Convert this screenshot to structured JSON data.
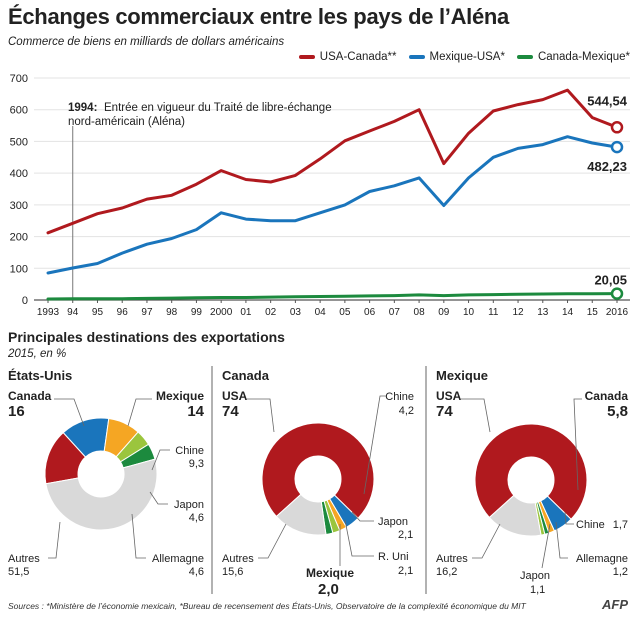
{
  "header": {
    "title": "Échanges commerciaux entre les pays de l’Aléna",
    "subtitle": "Commerce de biens en milliards de dollars américains"
  },
  "colors": {
    "usa_canada": "#b0191e",
    "mexique_usa": "#1a75bc",
    "canada_mexique": "#1c8a3e"
  },
  "chart_data": [
    {
      "type": "line",
      "x": [
        "1993",
        "94",
        "95",
        "96",
        "97",
        "98",
        "99",
        "2000",
        "01",
        "02",
        "03",
        "04",
        "05",
        "06",
        "07",
        "08",
        "09",
        "10",
        "11",
        "12",
        "13",
        "14",
        "15",
        "2016"
      ],
      "ylim": [
        0,
        700
      ],
      "yticks": [
        0,
        100,
        200,
        300,
        400,
        500,
        600,
        700
      ],
      "grid": true,
      "series": [
        {
          "name": "USA-Canada**",
          "color": "#b0191e",
          "values": [
            212,
            242,
            272,
            290,
            318,
            330,
            365,
            408,
            380,
            372,
            393,
            445,
            502,
            533,
            563,
            600,
            430,
            526,
            596,
            616,
            632,
            662,
            575,
            544.54
          ],
          "end_label": "544,54"
        },
        {
          "name": "Mexique-USA*",
          "color": "#1a75bc",
          "values": [
            85,
            101,
            115,
            148,
            176,
            194,
            222,
            275,
            255,
            250,
            250,
            275,
            300,
            342,
            360,
            385,
            298,
            385,
            450,
            478,
            490,
            515,
            495,
            482.23
          ],
          "end_label": "482,23"
        },
        {
          "name": "Canada-Mexique*",
          "color": "#1c8a3e",
          "values": [
            3,
            4,
            4,
            4,
            5,
            6,
            7,
            8,
            8,
            9,
            10,
            11,
            12,
            13,
            14,
            16,
            14,
            16,
            17,
            18,
            19,
            20,
            20,
            20.05
          ],
          "end_label": "20,05"
        }
      ],
      "annotation": {
        "year_label": "1994:",
        "text_line1": "Entrée en vigueur du Traité de libre-échange",
        "text_line2": "nord-américain (Aléna)"
      }
    },
    {
      "type": "pie",
      "title": "Principales destinations des exportations",
      "subtitle": "2015, en %",
      "charts": [
        {
          "country": "États-Unis",
          "slices": [
            {
              "label": "Canada",
              "value": "16",
              "num": 16,
              "color": "#b0191e"
            },
            {
              "label": "Mexique",
              "value": "14",
              "num": 14,
              "color": "#1a75bc"
            },
            {
              "label": "Chine",
              "value": "9,3",
              "num": 9.3,
              "color": "#f5a623"
            },
            {
              "label": "Japon",
              "value": "4,6",
              "num": 4.6,
              "color": "#9bc53d"
            },
            {
              "label": "Allemagne",
              "value": "4,6",
              "num": 4.6,
              "color": "#1c8a3e"
            },
            {
              "label": "Autres",
              "value": "51,5",
              "num": 51.5,
              "color": "#d9d9d9"
            }
          ]
        },
        {
          "country": "Canada",
          "slices": [
            {
              "label": "USA",
              "value": "74",
              "num": 74,
              "color": "#b0191e"
            },
            {
              "label": "Chine",
              "value": "4,2",
              "num": 4.2,
              "color": "#1a75bc"
            },
            {
              "label": "Japon",
              "value": "2,1",
              "num": 2.1,
              "color": "#f5a623"
            },
            {
              "label": "R. Uni",
              "value": "2,1",
              "num": 2.1,
              "color": "#9bc53d"
            },
            {
              "label": "Mexique",
              "value": "2,0",
              "num": 2.0,
              "color": "#1c8a3e"
            },
            {
              "label": "Autres",
              "value": "15,6",
              "num": 15.6,
              "color": "#d9d9d9"
            }
          ]
        },
        {
          "country": "Mexique",
          "slices": [
            {
              "label": "USA",
              "value": "74",
              "num": 74,
              "color": "#b0191e"
            },
            {
              "label": "Canada",
              "value": "5,8",
              "num": 5.8,
              "color": "#1a75bc"
            },
            {
              "label": "Chine",
              "value": "1,7",
              "num": 1.7,
              "color": "#f5a623"
            },
            {
              "label": "Allemagne",
              "value": "1,2",
              "num": 1.2,
              "color": "#1c8a3e"
            },
            {
              "label": "Japon",
              "value": "1,1",
              "num": 1.1,
              "color": "#9bc53d"
            },
            {
              "label": "Autres",
              "value": "16,2",
              "num": 16.2,
              "color": "#d9d9d9"
            }
          ]
        }
      ]
    }
  ],
  "footer": {
    "sources": "Sources : *Ministère de l’économie mexicain,  *Bureau de recensement des États-Unis, Observatoire de la complexité économique du MIT",
    "logo": "AFP"
  }
}
